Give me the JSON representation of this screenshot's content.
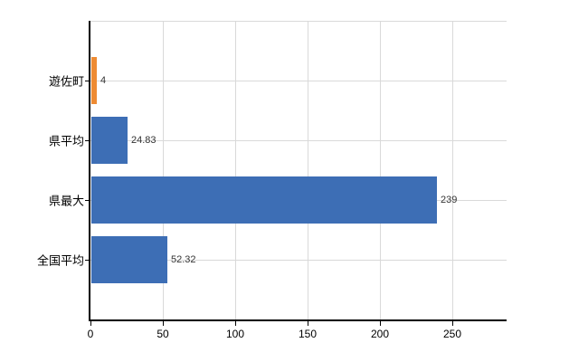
{
  "chart_data": {
    "type": "bar",
    "orientation": "horizontal",
    "title": "",
    "xlabel": "",
    "ylabel": "",
    "categories": [
      "遊佐町",
      "県平均",
      "県最大",
      "全国平均"
    ],
    "values": [
      4,
      24.83,
      239,
      52.32
    ],
    "data_labels": [
      "4",
      "24.83",
      "239",
      "52.32"
    ],
    "bar_colors": [
      "#ee8b33",
      "#3d6eb5",
      "#3d6eb5",
      "#3d6eb5"
    ],
    "xticks": [
      0,
      50,
      100,
      150,
      200,
      250
    ],
    "xtick_labels": [
      "0",
      "50",
      "100",
      "150",
      "200",
      "250"
    ],
    "xlim": [
      0,
      287.5
    ],
    "grid": true,
    "legend": false,
    "colors": {
      "bar_blue": "#3d6eb5",
      "bar_orange": "#ee8b33",
      "gridline": "#d9d9d9",
      "axis": "#000000",
      "value_label": "#333333",
      "category_label": "#000000",
      "background": "#ffffff"
    }
  }
}
